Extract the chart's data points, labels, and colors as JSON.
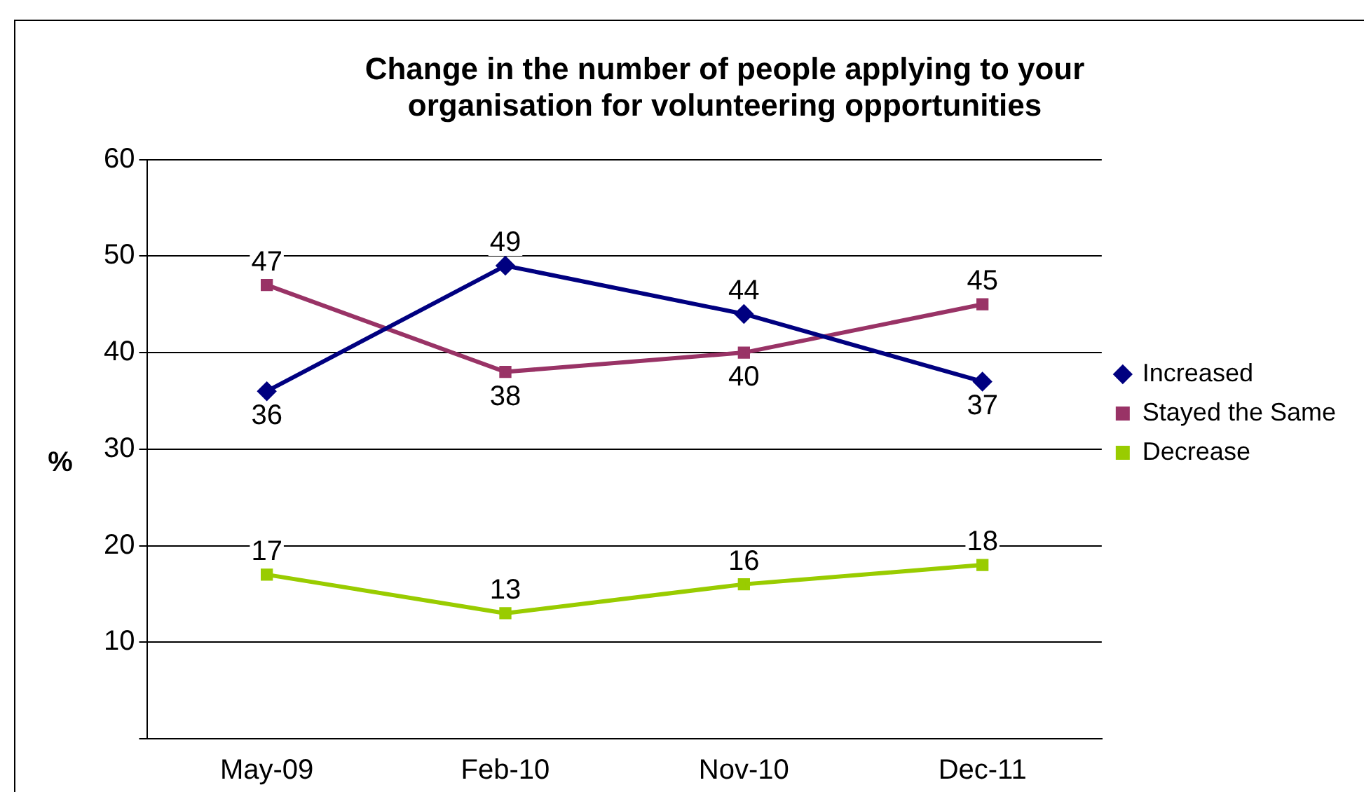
{
  "chart_data": {
    "type": "line",
    "title": "Change in the number of people applying to your organisation for volunteering opportunities",
    "ylabel": "%",
    "categories": [
      "May-09",
      "Feb-10",
      "Nov-10",
      "Dec-11"
    ],
    "series": [
      {
        "name": "Increased",
        "color": "#000080",
        "values": [
          36,
          49,
          44,
          37
        ],
        "marker": "diamond"
      },
      {
        "name": "Stayed the Same",
        "color": "#993366",
        "values": [
          47,
          38,
          40,
          45
        ],
        "marker": "square"
      },
      {
        "name": "Decrease",
        "color": "#99cc00",
        "values": [
          17,
          13,
          16,
          18
        ],
        "marker": "square"
      }
    ],
    "ylim": [
      0,
      60
    ],
    "yticks": [
      {
        "value": 0,
        "label": null
      },
      10,
      20,
      30,
      40,
      50,
      60
    ],
    "grid": "y",
    "legend": "right",
    "data_labels": true,
    "line_style": "solid"
  }
}
